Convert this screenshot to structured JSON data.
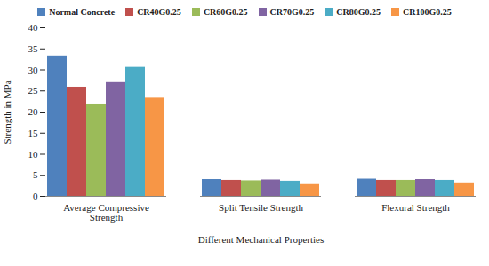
{
  "chart_data": {
    "type": "bar",
    "categories": [
      "Average Compressive Strength",
      "Split Tensile Strength",
      "Flexural Strength"
    ],
    "series": [
      {
        "name": "Normal Concrete",
        "color": "#4f81bd",
        "values": [
          33.3,
          4.0,
          4.1
        ]
      },
      {
        "name": "CR40G0.25",
        "color": "#c0504d",
        "values": [
          25.9,
          3.8,
          3.8
        ]
      },
      {
        "name": "CR60G0.25",
        "color": "#9bbb59",
        "values": [
          21.9,
          3.7,
          3.8
        ]
      },
      {
        "name": "CR70G0.25",
        "color": "#8064a2",
        "values": [
          27.2,
          3.9,
          4.0
        ]
      },
      {
        "name": "CR80G0.25",
        "color": "#4bacc6",
        "values": [
          30.6,
          3.6,
          3.8
        ]
      },
      {
        "name": "CR100G0.25",
        "color": "#f79646",
        "values": [
          23.5,
          3.0,
          3.2
        ]
      }
    ],
    "xlabel": "Different Mechanical Properties",
    "ylabel": "Strength in MPa",
    "ylim": [
      0,
      40
    ],
    "yticks": [
      0,
      5,
      10,
      15,
      20,
      25,
      30,
      35,
      40
    ],
    "legend": "top",
    "grid": false
  }
}
